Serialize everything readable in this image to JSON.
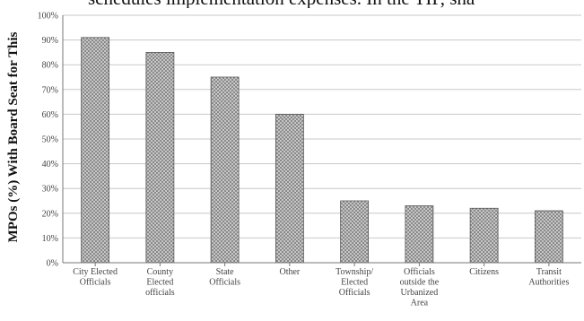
{
  "page_text": {
    "heading_fragment": "schedules implementation expenses. In the TIP, sha"
  },
  "colors": {
    "bar_fill": "#8a8a8a",
    "bar_dots": "#f2f2f2",
    "axis": "#777777",
    "grid": "#c8c8c8"
  },
  "chart_data": {
    "type": "bar",
    "ylabel": "MPOs (%) With Board Seat for This",
    "ylim": [
      0,
      100
    ],
    "yticks": [
      "0%",
      "10%",
      "20%",
      "30%",
      "40%",
      "50%",
      "60%",
      "70%",
      "80%",
      "90%",
      "100%"
    ],
    "grid": true,
    "categories": [
      [
        "City Elected",
        "Officials"
      ],
      [
        "County",
        "Elected",
        "officials"
      ],
      [
        "State",
        "Officials"
      ],
      [
        "Other"
      ],
      [
        "Township/",
        "Elected",
        "Officials"
      ],
      [
        "Officials",
        "outside the",
        "Urbanized",
        "Area"
      ],
      [
        "Citizens"
      ],
      [
        "Transit",
        "Authorities"
      ]
    ],
    "values": [
      91,
      85,
      75,
      60,
      25,
      23,
      22,
      21
    ]
  }
}
